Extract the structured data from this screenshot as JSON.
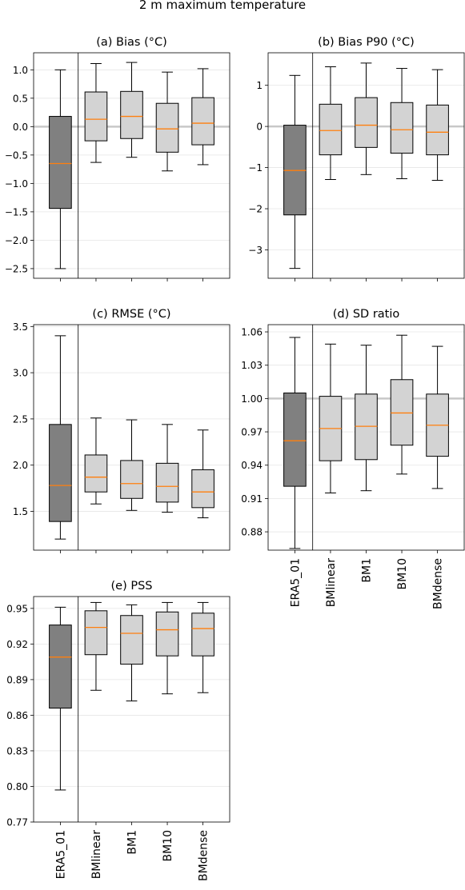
{
  "figure": {
    "suptitle": "2 m maximum temperature",
    "categories": [
      "ERA5_01",
      "BMlinear",
      "BM1",
      "BM10",
      "BMdense"
    ],
    "colors": {
      "reference_box": "#808080",
      "model_box": "#d3d3d3",
      "median": "#ff7f0e",
      "reference_line": "#c8c8c8",
      "grid": "#e6e6e6"
    }
  },
  "chart_data": [
    {
      "type": "box",
      "title": "(a) Bias (°C)",
      "xlabel": "",
      "ylabel": "",
      "reference_line": 0.0,
      "ylim": [
        -2.67,
        1.3
      ],
      "yticks": [
        1.0,
        0.5,
        0.0,
        -0.5,
        -1.0,
        -1.5,
        -2.0,
        -2.5
      ],
      "ytick_labels": [
        "1.0",
        "0.5",
        "0.0",
        "−0.5",
        "−1.0",
        "−1.5",
        "−2.0",
        "−2.5"
      ],
      "show_xtick_labels": false,
      "boxes": [
        {
          "category": "ERA5_01",
          "whisker_low": -2.5,
          "q1": -1.44,
          "median": -0.65,
          "q3": 0.18,
          "whisker_high": 1.0
        },
        {
          "category": "BMlinear",
          "whisker_low": -0.63,
          "q1": -0.25,
          "median": 0.13,
          "q3": 0.61,
          "whisker_high": 1.11
        },
        {
          "category": "BM1",
          "whisker_low": -0.54,
          "q1": -0.21,
          "median": 0.18,
          "q3": 0.62,
          "whisker_high": 1.13
        },
        {
          "category": "BM10",
          "whisker_low": -0.78,
          "q1": -0.45,
          "median": -0.04,
          "q3": 0.41,
          "whisker_high": 0.96
        },
        {
          "category": "BMdense",
          "whisker_low": -0.67,
          "q1": -0.32,
          "median": 0.06,
          "q3": 0.51,
          "whisker_high": 1.02
        }
      ]
    },
    {
      "type": "box",
      "title": "(b) Bias P90 (°C)",
      "xlabel": "",
      "ylabel": "",
      "reference_line": 0.0,
      "ylim": [
        -3.69,
        1.79
      ],
      "yticks": [
        1,
        0,
        -1,
        -2,
        -3
      ],
      "ytick_labels": [
        "1",
        "0",
        "−1",
        "−2",
        "−3"
      ],
      "show_xtick_labels": false,
      "boxes": [
        {
          "category": "ERA5_01",
          "whisker_low": -3.45,
          "q1": -2.15,
          "median": -1.07,
          "q3": 0.03,
          "whisker_high": 1.24
        },
        {
          "category": "BMlinear",
          "whisker_low": -1.29,
          "q1": -0.69,
          "median": -0.1,
          "q3": 0.54,
          "whisker_high": 1.45
        },
        {
          "category": "BM1",
          "whisker_low": -1.17,
          "q1": -0.51,
          "median": 0.03,
          "q3": 0.7,
          "whisker_high": 1.54
        },
        {
          "category": "BM10",
          "whisker_low": -1.27,
          "q1": -0.65,
          "median": -0.08,
          "q3": 0.58,
          "whisker_high": 1.41
        },
        {
          "category": "BMdense",
          "whisker_low": -1.31,
          "q1": -0.69,
          "median": -0.14,
          "q3": 0.52,
          "whisker_high": 1.38
        }
      ]
    },
    {
      "type": "box",
      "title": "(c) RMSE (°C)",
      "xlabel": "",
      "ylabel": "",
      "reference_line": null,
      "ylim": [
        1.08,
        3.52
      ],
      "yticks": [
        3.5,
        3.0,
        2.5,
        2.0,
        1.5
      ],
      "ytick_labels": [
        "3.5",
        "3.0",
        "2.5",
        "2.0",
        "1.5"
      ],
      "show_xtick_labels": false,
      "boxes": [
        {
          "category": "ERA5_01",
          "whisker_low": 1.2,
          "q1": 1.39,
          "median": 1.78,
          "q3": 2.44,
          "whisker_high": 3.4
        },
        {
          "category": "BMlinear",
          "whisker_low": 1.58,
          "q1": 1.71,
          "median": 1.87,
          "q3": 2.11,
          "whisker_high": 2.51
        },
        {
          "category": "BM1",
          "whisker_low": 1.51,
          "q1": 1.64,
          "median": 1.8,
          "q3": 2.05,
          "whisker_high": 2.49
        },
        {
          "category": "BM10",
          "whisker_low": 1.49,
          "q1": 1.6,
          "median": 1.77,
          "q3": 2.02,
          "whisker_high": 2.44
        },
        {
          "category": "BMdense",
          "whisker_low": 1.43,
          "q1": 1.54,
          "median": 1.71,
          "q3": 1.95,
          "whisker_high": 2.38
        }
      ]
    },
    {
      "type": "box",
      "title": "(d) SD ratio",
      "xlabel": "",
      "ylabel": "",
      "reference_line": 1.0,
      "ylim": [
        0.8635,
        1.0665
      ],
      "yticks": [
        1.06,
        1.03,
        1.0,
        0.97,
        0.94,
        0.91,
        0.88
      ],
      "ytick_labels": [
        "1.06",
        "1.03",
        "1.00",
        "0.97",
        "0.94",
        "0.91",
        "0.88"
      ],
      "show_xtick_labels": true,
      "boxes": [
        {
          "category": "ERA5_01",
          "whisker_low": 0.865,
          "q1": 0.921,
          "median": 0.962,
          "q3": 1.005,
          "whisker_high": 1.055
        },
        {
          "category": "BMlinear",
          "whisker_low": 0.915,
          "q1": 0.944,
          "median": 0.973,
          "q3": 1.002,
          "whisker_high": 1.049
        },
        {
          "category": "BM1",
          "whisker_low": 0.917,
          "q1": 0.945,
          "median": 0.975,
          "q3": 1.004,
          "whisker_high": 1.048
        },
        {
          "category": "BM10",
          "whisker_low": 0.932,
          "q1": 0.958,
          "median": 0.987,
          "q3": 1.017,
          "whisker_high": 1.057
        },
        {
          "category": "BMdense",
          "whisker_low": 0.919,
          "q1": 0.948,
          "median": 0.976,
          "q3": 1.004,
          "whisker_high": 1.047
        }
      ]
    },
    {
      "type": "box",
      "title": "(e) PSS",
      "xlabel": "",
      "ylabel": "",
      "reference_line": null,
      "ylim": [
        0.77,
        0.96
      ],
      "yticks": [
        0.95,
        0.92,
        0.89,
        0.86,
        0.83,
        0.8,
        0.77
      ],
      "ytick_labels": [
        "0.95",
        "0.92",
        "0.89",
        "0.86",
        "0.83",
        "0.80",
        "0.77"
      ],
      "show_xtick_labels": true,
      "boxes": [
        {
          "category": "ERA5_01",
          "whisker_low": 0.797,
          "q1": 0.866,
          "median": 0.909,
          "q3": 0.936,
          "whisker_high": 0.951
        },
        {
          "category": "BMlinear",
          "whisker_low": 0.881,
          "q1": 0.911,
          "median": 0.934,
          "q3": 0.948,
          "whisker_high": 0.955
        },
        {
          "category": "BM1",
          "whisker_low": 0.872,
          "q1": 0.903,
          "median": 0.929,
          "q3": 0.944,
          "whisker_high": 0.953
        },
        {
          "category": "BM10",
          "whisker_low": 0.878,
          "q1": 0.91,
          "median": 0.932,
          "q3": 0.947,
          "whisker_high": 0.955
        },
        {
          "category": "BMdense",
          "whisker_low": 0.879,
          "q1": 0.91,
          "median": 0.933,
          "q3": 0.946,
          "whisker_high": 0.955
        }
      ]
    }
  ]
}
